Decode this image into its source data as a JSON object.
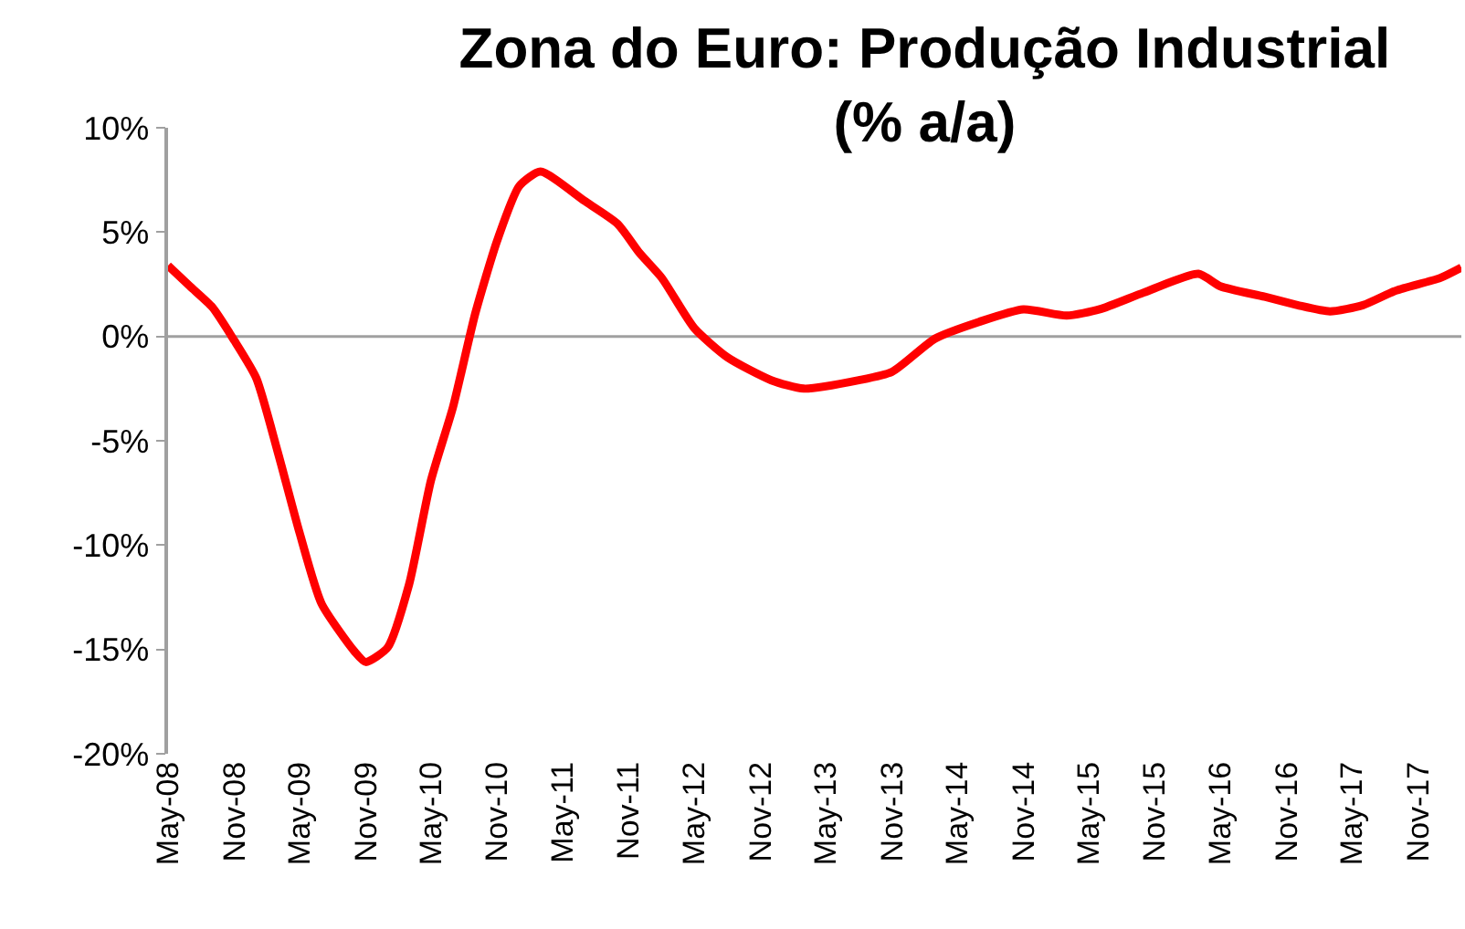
{
  "chart_data": {
    "type": "line",
    "title": "Zona do Euro: Produção Industrial\n(% a/a)",
    "x": [
      "2008-05",
      "2008-07",
      "2008-09",
      "2008-11",
      "2009-01",
      "2009-03",
      "2009-05",
      "2009-07",
      "2009-10",
      "2009-11",
      "2010-01",
      "2010-03",
      "2010-05",
      "2010-07",
      "2010-09",
      "2010-11",
      "2011-01",
      "2011-03",
      "2011-07",
      "2011-10",
      "2011-12",
      "2012-02",
      "2012-05",
      "2012-08",
      "2012-12",
      "2013-03",
      "2013-08",
      "2013-11",
      "2014-03",
      "2014-07",
      "2014-11",
      "2015-03",
      "2015-06",
      "2015-10",
      "2016-03",
      "2016-05",
      "2016-09",
      "2016-12",
      "2017-03",
      "2017-06",
      "2017-09",
      "2018-01",
      "2018-03"
    ],
    "series": [
      {
        "color": "#ff0000",
        "values": [
          3.4,
          2.4,
          1.4,
          -0.2,
          -2.0,
          -5.5,
          -9.4,
          -12.8,
          -15.1,
          -15.6,
          -14.9,
          -11.9,
          -6.9,
          -3.4,
          1.1,
          4.6,
          7.2,
          7.9,
          6.5,
          5.4,
          4.0,
          2.8,
          0.4,
          -1.0,
          -2.1,
          -2.5,
          -2.1,
          -1.7,
          -0.1,
          0.7,
          1.3,
          1.0,
          1.3,
          2.1,
          3.0,
          2.4,
          1.9,
          1.5,
          1.2,
          1.5,
          2.2,
          2.8,
          3.3
        ]
      }
    ],
    "ylim": [
      -20,
      10
    ],
    "yticks": [
      {
        "value": -20,
        "label": "-20%"
      },
      {
        "value": -15,
        "label": "-15%"
      },
      {
        "value": -10,
        "label": "-10%"
      },
      {
        "value": -5,
        "label": "-5%"
      },
      {
        "value": 0,
        "label": "0%"
      },
      {
        "value": 5,
        "label": "5%"
      },
      {
        "value": 10,
        "label": "10%"
      }
    ],
    "xlim": [
      "2008-05",
      "2018-03"
    ],
    "xticks": [
      {
        "value": "2008-05",
        "label": "May-08"
      },
      {
        "value": "2008-11",
        "label": "Nov-08"
      },
      {
        "value": "2009-05",
        "label": "May-09"
      },
      {
        "value": "2009-11",
        "label": "Nov-09"
      },
      {
        "value": "2010-05",
        "label": "May-10"
      },
      {
        "value": "2010-11",
        "label": "Nov-10"
      },
      {
        "value": "2011-05",
        "label": "May-11"
      },
      {
        "value": "2011-11",
        "label": "Nov-11"
      },
      {
        "value": "2012-05",
        "label": "May-12"
      },
      {
        "value": "2012-11",
        "label": "Nov-12"
      },
      {
        "value": "2013-05",
        "label": "May-13"
      },
      {
        "value": "2013-11",
        "label": "Nov-13"
      },
      {
        "value": "2014-05",
        "label": "May-14"
      },
      {
        "value": "2014-11",
        "label": "Nov-14"
      },
      {
        "value": "2015-05",
        "label": "May-15"
      },
      {
        "value": "2015-11",
        "label": "Nov-15"
      },
      {
        "value": "2016-05",
        "label": "May-16"
      },
      {
        "value": "2016-11",
        "label": "Nov-16"
      },
      {
        "value": "2017-05",
        "label": "May-17"
      },
      {
        "value": "2017-11",
        "label": "Nov-17"
      }
    ],
    "ref_lines": [
      {
        "axis": "y",
        "value": 0,
        "color": "#a0a0a0"
      }
    ],
    "grid": false,
    "marker": "none",
    "line_style": "solid"
  }
}
